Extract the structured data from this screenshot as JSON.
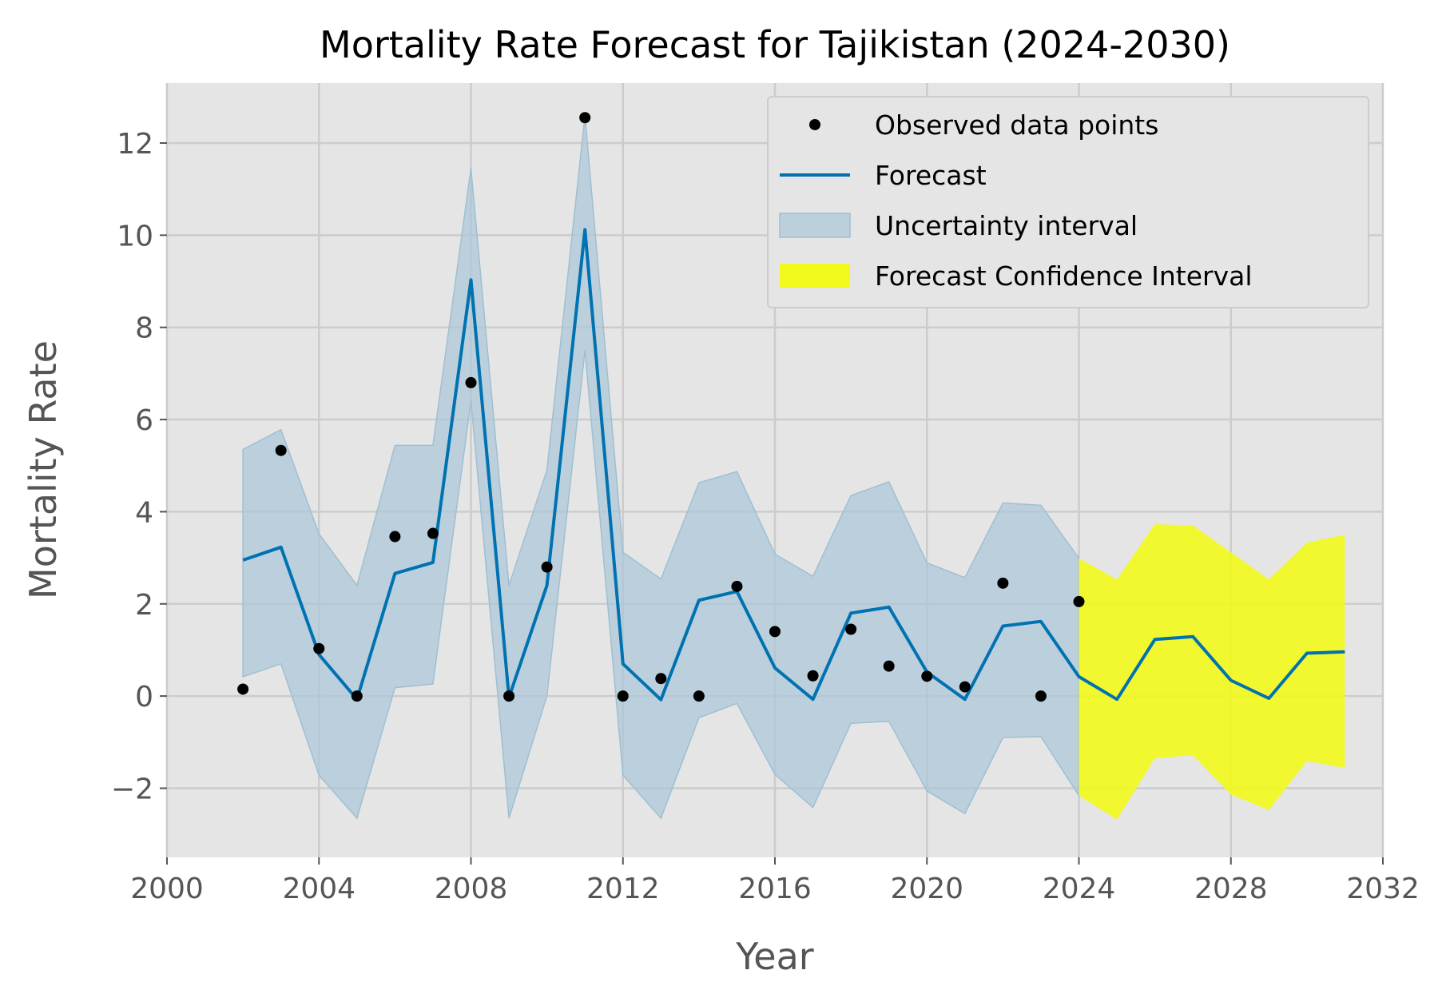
{
  "chart_data": {
    "type": "line",
    "title": "Mortality Rate Forecast for Tajikistan (2024-2030)",
    "xlabel": "Year",
    "ylabel": "Mortality Rate",
    "xlim": [
      2000,
      2032
    ],
    "ylim": [
      -3.5,
      13.3
    ],
    "xticks": [
      2000,
      2004,
      2008,
      2012,
      2016,
      2020,
      2024,
      2028,
      2032
    ],
    "yticks": [
      -2,
      0,
      2,
      4,
      6,
      8,
      10,
      12
    ],
    "ytick_labels": [
      "−2",
      "0",
      "2",
      "4",
      "6",
      "8",
      "10",
      "12"
    ],
    "grid": true,
    "legend_position": "top-right",
    "colors": {
      "background": "#e5e5e5",
      "grid": "#cccccc",
      "forecast": "#0072b2",
      "uncertainty": "#a9c8d8",
      "confidence": "#f2f91c",
      "points": "#000000"
    },
    "observed": {
      "name": "Observed data points",
      "x": [
        2002,
        2003,
        2004,
        2005,
        2006,
        2007,
        2008,
        2009,
        2010,
        2011,
        2012,
        2013,
        2014,
        2015,
        2016,
        2017,
        2018,
        2019,
        2020,
        2021,
        2022,
        2023,
        2024
      ],
      "y": [
        0.15,
        5.33,
        1.03,
        0.0,
        3.46,
        3.53,
        6.8,
        0.0,
        2.8,
        12.55,
        0.0,
        0.38,
        0.0,
        2.38,
        1.4,
        0.44,
        1.45,
        0.65,
        0.43,
        0.2,
        2.45,
        0.0,
        2.05
      ]
    },
    "forecast": {
      "name": "Forecast",
      "x": [
        2002,
        2003,
        2004,
        2005,
        2006,
        2007,
        2008,
        2009,
        2010,
        2011,
        2012,
        2013,
        2014,
        2015,
        2016,
        2017,
        2018,
        2019,
        2020,
        2021,
        2022,
        2023,
        2024,
        2025,
        2026,
        2027,
        2028,
        2029,
        2030,
        2031
      ],
      "y": [
        2.95,
        3.23,
        0.9,
        -0.07,
        2.66,
        2.9,
        9.03,
        -0.03,
        2.4,
        10.12,
        0.7,
        -0.08,
        2.08,
        2.27,
        0.61,
        -0.07,
        1.8,
        1.93,
        0.52,
        -0.07,
        1.52,
        1.62,
        0.42,
        -0.07,
        1.23,
        1.29,
        0.34,
        -0.05,
        0.93,
        0.96
      ]
    },
    "uncertainty_interval": {
      "name": "Uncertainty interval",
      "x": [
        2002,
        2003,
        2004,
        2005,
        2006,
        2007,
        2008,
        2009,
        2010,
        2011,
        2012,
        2013,
        2014,
        2015,
        2016,
        2017,
        2018,
        2019,
        2020,
        2021,
        2022,
        2023,
        2024
      ],
      "upper": [
        5.35,
        5.78,
        3.52,
        2.4,
        5.44,
        5.44,
        11.45,
        2.4,
        4.9,
        12.6,
        3.12,
        2.54,
        4.63,
        4.87,
        3.08,
        2.6,
        4.35,
        4.65,
        2.89,
        2.57,
        4.19,
        4.14,
        2.99
      ],
      "lower": [
        0.42,
        0.7,
        -1.72,
        -2.65,
        0.18,
        0.26,
        6.4,
        -2.65,
        0.0,
        7.5,
        -1.72,
        -2.65,
        -0.47,
        -0.16,
        -1.7,
        -2.42,
        -0.59,
        -0.55,
        -2.06,
        -2.55,
        -0.9,
        -0.88,
        -2.16
      ]
    },
    "forecast_confidence_interval": {
      "name": "Forecast Confidence Interval",
      "x": [
        2024,
        2025,
        2026,
        2027,
        2028,
        2029,
        2030,
        2031
      ],
      "upper": [
        2.99,
        2.53,
        3.73,
        3.7,
        3.12,
        2.53,
        3.33,
        3.5
      ],
      "lower": [
        -2.16,
        -2.68,
        -1.35,
        -1.28,
        -2.14,
        -2.47,
        -1.41,
        -1.56
      ]
    }
  }
}
